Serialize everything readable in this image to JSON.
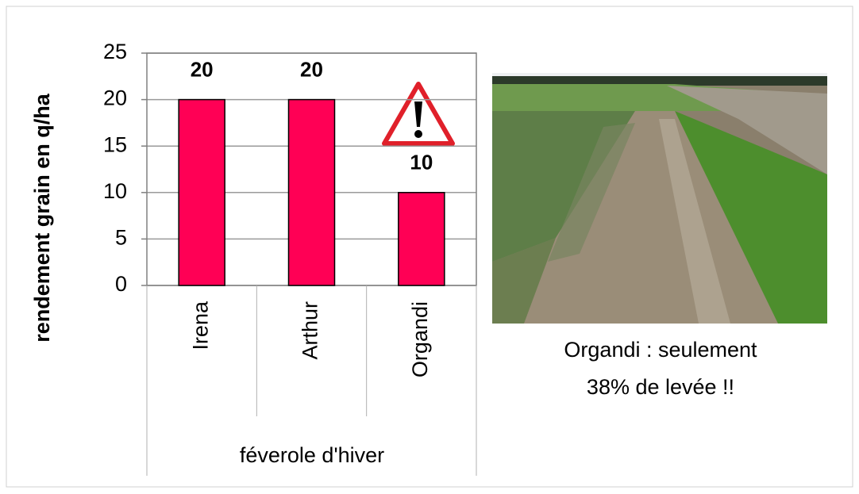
{
  "chart_data": {
    "type": "bar",
    "y_label": "rendement grain en q/ha",
    "x_label": "féverole d'hiver",
    "categories": [
      "Irena",
      "Arthur",
      "Organdi"
    ],
    "values": [
      20,
      20,
      10
    ],
    "color": "#ff0055",
    "ylim": [
      0,
      25
    ],
    "yticks": [
      0,
      5,
      10,
      15,
      20,
      25
    ],
    "grid": true,
    "annotation": [
      "Organdi : seulement",
      "38% de levée !!"
    ]
  }
}
